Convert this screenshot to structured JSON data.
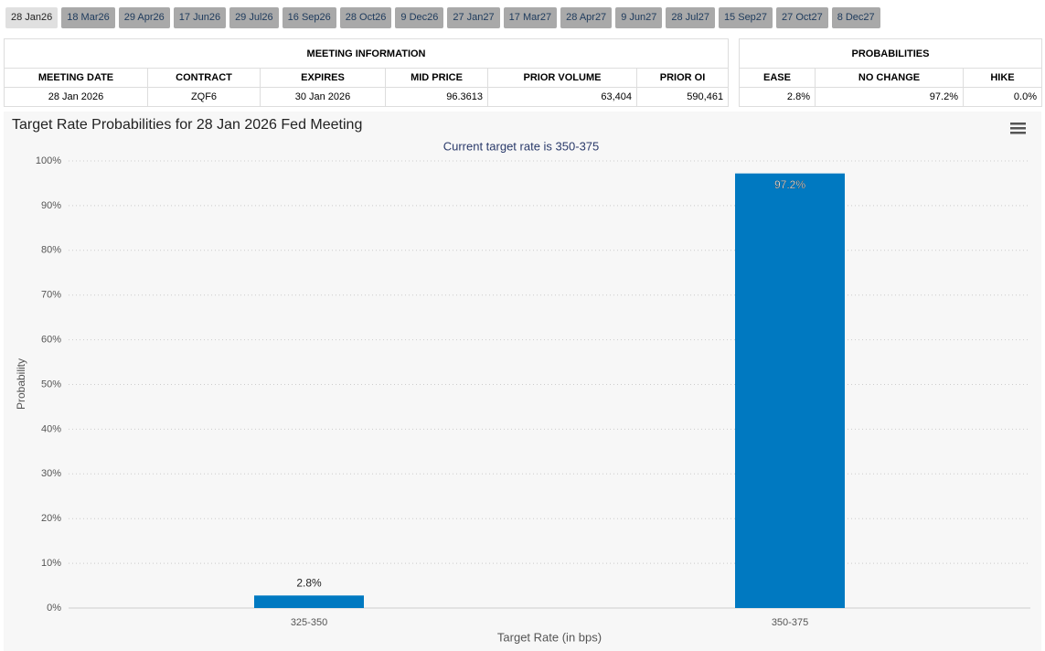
{
  "tabs": [
    "28 Jan26",
    "18 Mar26",
    "29 Apr26",
    "17 Jun26",
    "29 Jul26",
    "16 Sep26",
    "28 Oct26",
    "9 Dec26",
    "27 Jan27",
    "17 Mar27",
    "28 Apr27",
    "9 Jun27",
    "28 Jul27",
    "15 Sep27",
    "27 Oct27",
    "8 Dec27"
  ],
  "meeting_info": {
    "title": "MEETING INFORMATION",
    "headers": [
      "MEETING DATE",
      "CONTRACT",
      "EXPIRES",
      "MID PRICE",
      "PRIOR VOLUME",
      "PRIOR OI"
    ],
    "row": [
      "28 Jan 2026",
      "ZQF6",
      "30 Jan 2026",
      "96.3613",
      "63,404",
      "590,461"
    ]
  },
  "probabilities": {
    "title": "PROBABILITIES",
    "headers": [
      "EASE",
      "NO CHANGE",
      "HIKE"
    ],
    "row": [
      "2.8%",
      "97.2%",
      "0.0%"
    ]
  },
  "chart_data": {
    "type": "bar",
    "title": "Target Rate Probabilities for 28 Jan 2026 Fed Meeting",
    "subtitle": "Current target rate is 350-375",
    "x_label": "Target Rate (in bps)",
    "y_label": "Probability",
    "categories": [
      "325-350",
      "350-375"
    ],
    "values": [
      2.8,
      97.2
    ],
    "value_labels": [
      "2.8%",
      "97.2%"
    ],
    "color": "#0079c1",
    "ylim": [
      0,
      100
    ],
    "yticks": [
      {
        "value": 0,
        "label": "0%"
      },
      {
        "value": 10,
        "label": "10%"
      },
      {
        "value": 20,
        "label": "20%"
      },
      {
        "value": 30,
        "label": "30%"
      },
      {
        "value": 40,
        "label": "40%"
      },
      {
        "value": 50,
        "label": "50%"
      },
      {
        "value": 60,
        "label": "60%"
      },
      {
        "value": 70,
        "label": "70%"
      },
      {
        "value": 80,
        "label": "80%"
      },
      {
        "value": 90,
        "label": "90%"
      },
      {
        "value": 100,
        "label": "100%"
      }
    ],
    "grid": true
  }
}
